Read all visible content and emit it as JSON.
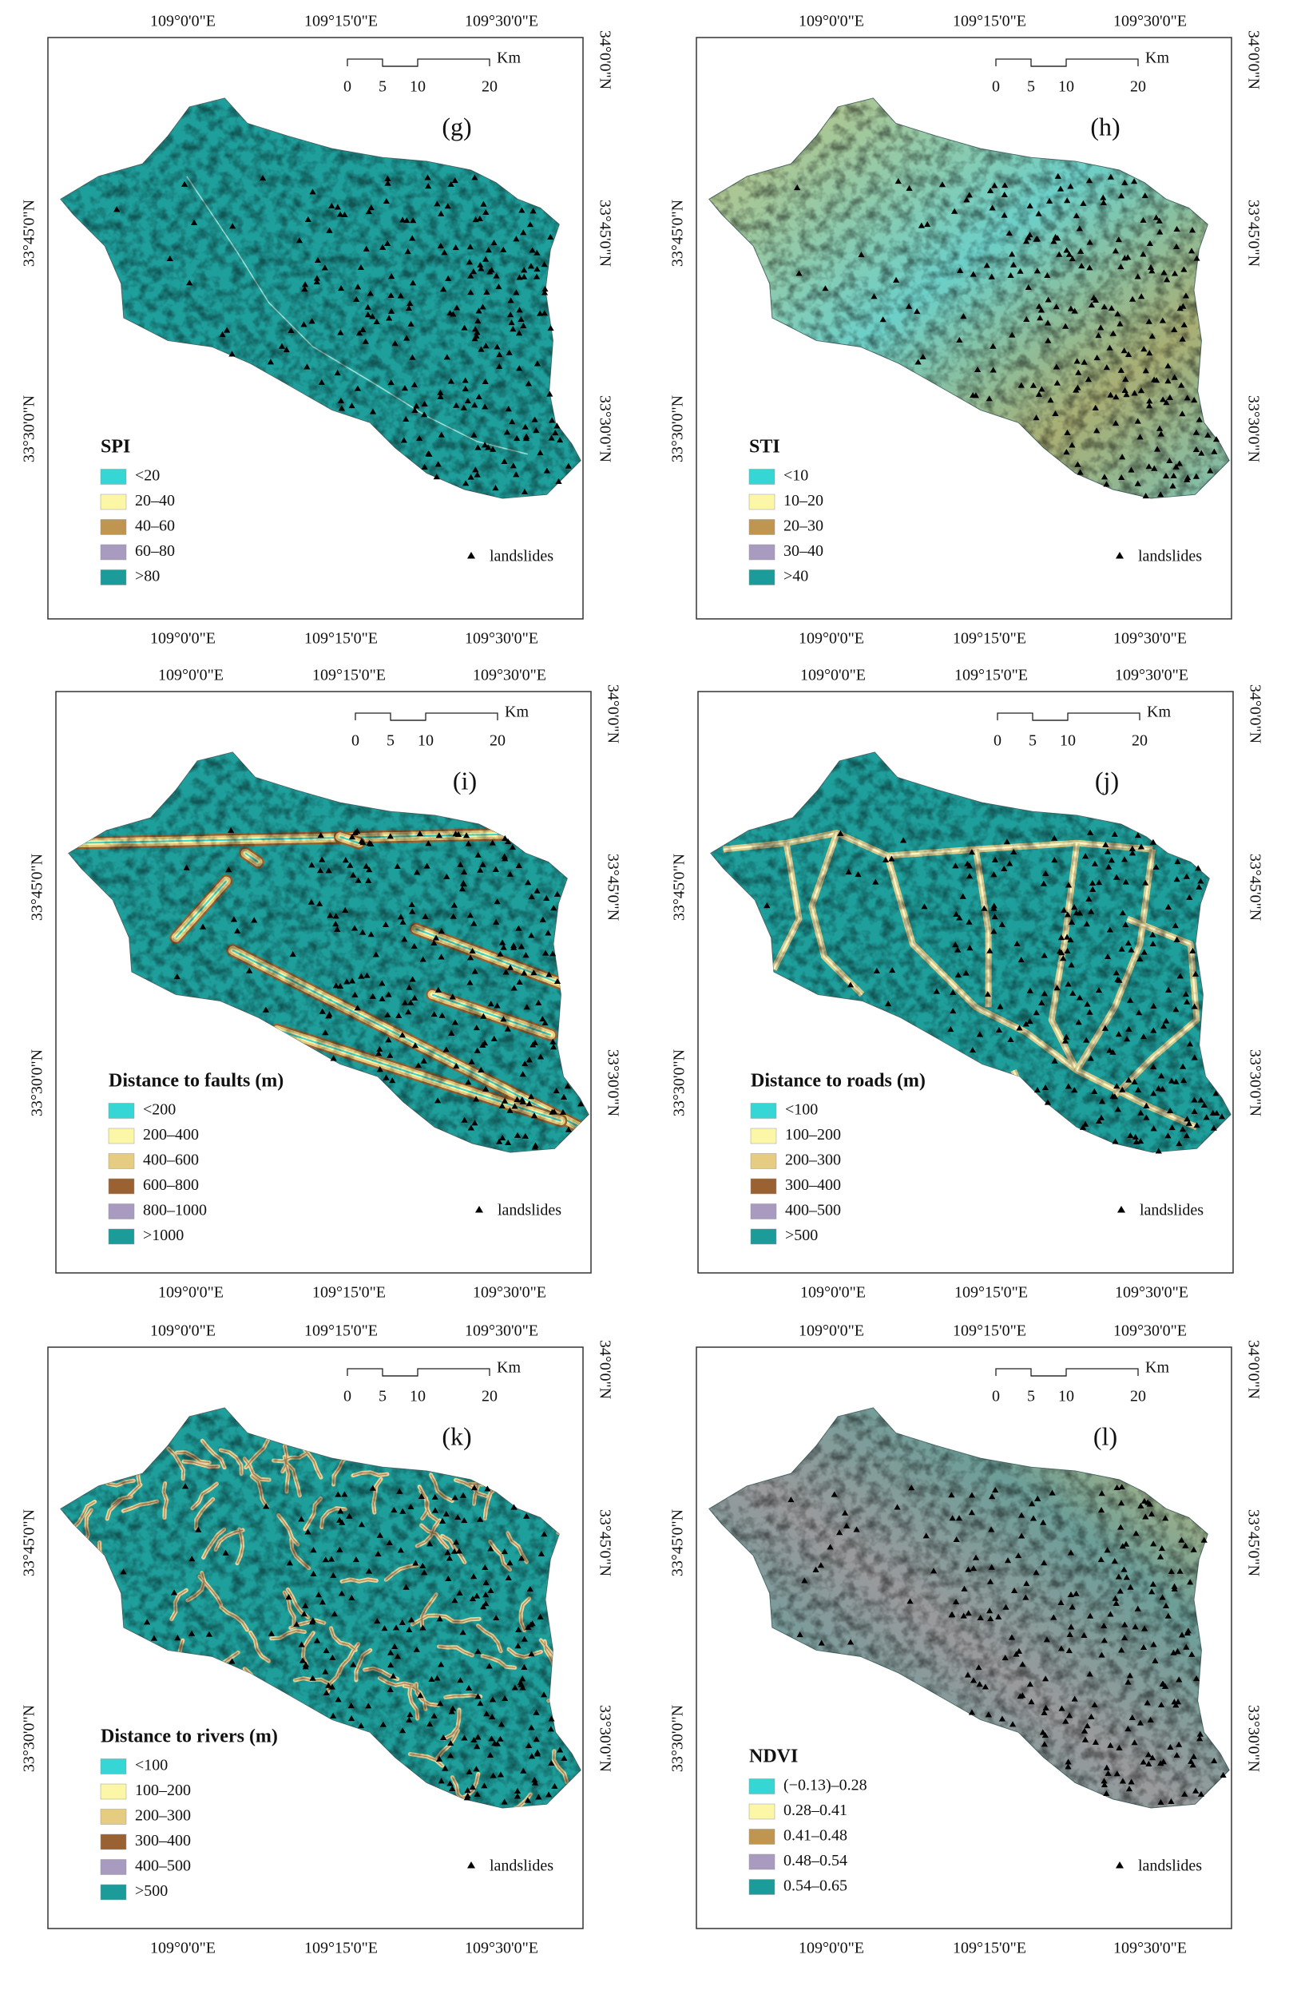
{
  "panels": [
    {
      "label": "(g)",
      "legend_title": "SPI",
      "legend": [
        {
          "label": "<20",
          "color": "#35d6d4"
        },
        {
          "label": "20–40",
          "color": "#fbf7a6"
        },
        {
          "label": "40–60",
          "color": "#bf9550"
        },
        {
          "label": "60–80",
          "color": "#a99bc0"
        },
        {
          "label": ">80",
          "color": "#1b9b99"
        }
      ],
      "landslides": "landslides",
      "scale_labels": [
        "0",
        "5",
        "10",
        "20"
      ],
      "scale_unit": "Km",
      "lon_top": [
        "109°0'0\"E",
        "109°15'0\"E",
        "109°30'0\"E"
      ],
      "lon_bottom": [
        "109°0'0\"E",
        "109°15'0\"E",
        "109°30'0\"E"
      ],
      "lat_right": [
        "34°0'0\"N",
        "33°45'0\"N",
        "33°30'0\"N"
      ],
      "lat_left": [
        "33°45'0\"N",
        "33°30'0\"N"
      ]
    },
    {
      "label": "(h)",
      "legend_title": "STI",
      "legend": [
        {
          "label": "<10",
          "color": "#35d6d4"
        },
        {
          "label": "10–20",
          "color": "#fbf7a6"
        },
        {
          "label": "20–30",
          "color": "#bf9550"
        },
        {
          "label": "30–40",
          "color": "#a99bc0"
        },
        {
          "label": ">40",
          "color": "#1b9b99"
        }
      ],
      "landslides": "landslides",
      "scale_labels": [
        "0",
        "5",
        "10",
        "20"
      ],
      "scale_unit": "Km",
      "lon_top": [
        "109°0'0\"E",
        "109°15'0\"E",
        "109°30'0\"E"
      ],
      "lon_bottom": [
        "109°0'0\"E",
        "109°15'0\"E",
        "109°30'0\"E"
      ],
      "lat_right": [
        "34°0'0\"N",
        "33°45'0\"N",
        "33°30'0\"N"
      ],
      "lat_left": [
        "33°45'0\"N",
        "33°30'0\"N"
      ]
    },
    {
      "label": "(i)",
      "legend_title": "Distance to faults (m)",
      "legend": [
        {
          "label": "<200",
          "color": "#35d6d4"
        },
        {
          "label": "200–400",
          "color": "#fbf7a6"
        },
        {
          "label": "400–600",
          "color": "#e6cc80"
        },
        {
          "label": "600–800",
          "color": "#9a6132"
        },
        {
          "label": "800–1000",
          "color": "#a99bc0"
        },
        {
          "label": ">1000",
          "color": "#1b9b99"
        }
      ],
      "landslides": "landslides",
      "scale_labels": [
        "0",
        "5",
        "10",
        "20"
      ],
      "scale_unit": "Km",
      "lon_top": [
        "109°0'0\"E",
        "109°15'0\"E",
        "109°30'0\"E"
      ],
      "lon_bottom": [
        "109°0'0\"E",
        "109°15'0\"E",
        "109°30'0\"E"
      ],
      "lat_right": [
        "34°0'0\"N",
        "33°45'0\"N",
        "33°30'0\"N"
      ],
      "lat_left": [
        "33°45'0\"N",
        "33°30'0\"N"
      ]
    },
    {
      "label": "(j)",
      "legend_title": "Distance to roads (m)",
      "legend": [
        {
          "label": "<100",
          "color": "#35d6d4"
        },
        {
          "label": "100–200",
          "color": "#fbf7a6"
        },
        {
          "label": "200–300",
          "color": "#e6cc80"
        },
        {
          "label": "300–400",
          "color": "#9a6132"
        },
        {
          "label": "400–500",
          "color": "#a99bc0"
        },
        {
          "label": ">500",
          "color": "#1b9b99"
        }
      ],
      "landslides": "landslides",
      "scale_labels": [
        "0",
        "5",
        "10",
        "20"
      ],
      "scale_unit": "Km",
      "lon_top": [
        "109°0'0\"E",
        "109°15'0\"E",
        "109°30'0\"E"
      ],
      "lon_bottom": [
        "109°0'0\"E",
        "109°15'0\"E",
        "109°30'0\"E"
      ],
      "lat_right": [
        "34°0'0\"N",
        "33°45'0\"N",
        "33°30'0\"N"
      ],
      "lat_left": [
        "33°45'0\"N",
        "33°30'0\"N"
      ]
    },
    {
      "label": "(k)",
      "legend_title": "Distance to rivers (m)",
      "legend": [
        {
          "label": "<100",
          "color": "#35d6d4"
        },
        {
          "label": "100–200",
          "color": "#fbf7a6"
        },
        {
          "label": "200–300",
          "color": "#e6cc80"
        },
        {
          "label": "300–400",
          "color": "#9a6132"
        },
        {
          "label": "400–500",
          "color": "#a99bc0"
        },
        {
          "label": ">500",
          "color": "#1b9b99"
        }
      ],
      "landslides": "landslides",
      "scale_labels": [
        "0",
        "5",
        "10",
        "20"
      ],
      "scale_unit": "Km",
      "lon_top": [
        "109°0'0\"E",
        "109°15'0\"E",
        "109°30'0\"E"
      ],
      "lon_bottom": [
        "109°0'0\"E",
        "109°15'0\"E",
        "109°30'0\"E"
      ],
      "lat_right": [
        "34°0'0\"N",
        "33°45'0\"N",
        "33°30'0\"N"
      ],
      "lat_left": [
        "33°45'0\"N",
        "33°30'0\"N"
      ]
    },
    {
      "label": "(l)",
      "legend_title": "NDVI",
      "legend": [
        {
          "label": "(−0.13)–0.28",
          "color": "#35d6d4"
        },
        {
          "label": "0.28–0.41",
          "color": "#fbf7a6"
        },
        {
          "label": "0.41–0.48",
          "color": "#bf9550"
        },
        {
          "label": "0.48–0.54",
          "color": "#a99bc0"
        },
        {
          "label": "0.54–0.65",
          "color": "#1b9b99"
        }
      ],
      "landslides": "landslides",
      "scale_labels": [
        "0",
        "5",
        "10",
        "20"
      ],
      "scale_unit": "Km",
      "lon_top": [
        "109°0'0\"E",
        "109°15'0\"E",
        "109°30'0\"E"
      ],
      "lon_bottom": [
        "109°0'0\"E",
        "109°15'0\"E",
        "109°30'0\"E"
      ],
      "lat_right": [
        "34°0'0\"N",
        "33°45'0\"N",
        "33°30'0\"N"
      ],
      "lat_left": [
        "33°45'0\"N",
        "33°30'0\"N"
      ]
    }
  ]
}
